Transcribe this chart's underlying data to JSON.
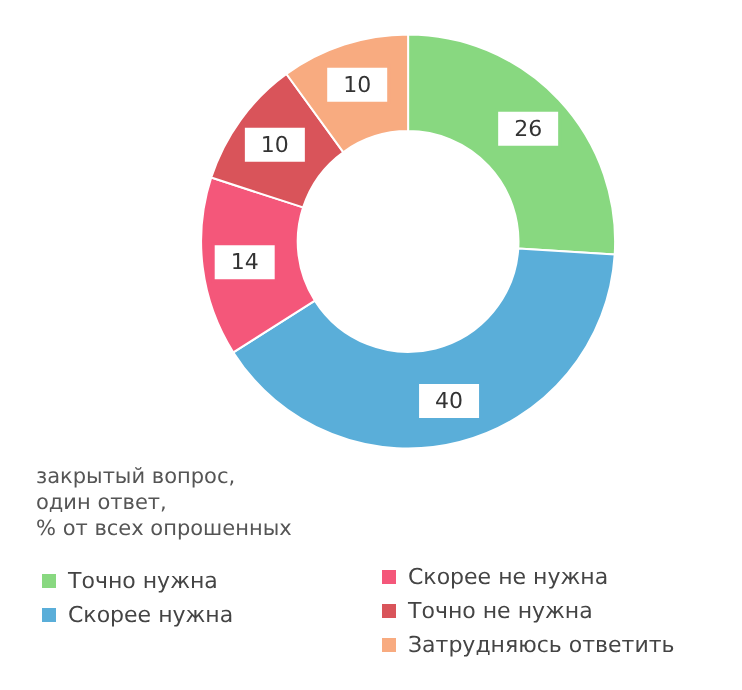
{
  "chart_data": {
    "type": "donut",
    "categories": [
      "Точно нужна",
      "Скорее нужна",
      "Скорее не нужна",
      "Точно не нужна",
      "Затрудняюсь ответить"
    ],
    "values": [
      26,
      40,
      14,
      10,
      10
    ],
    "colors": [
      "#88d880",
      "#5aaed9",
      "#f4577a",
      "#d9545a",
      "#f8ab80"
    ],
    "data_labels": true,
    "legend": "bottom",
    "annotations": [
      "закрытый вопрос,\nодин ответ,\n% от всех опрошенных"
    ]
  }
}
